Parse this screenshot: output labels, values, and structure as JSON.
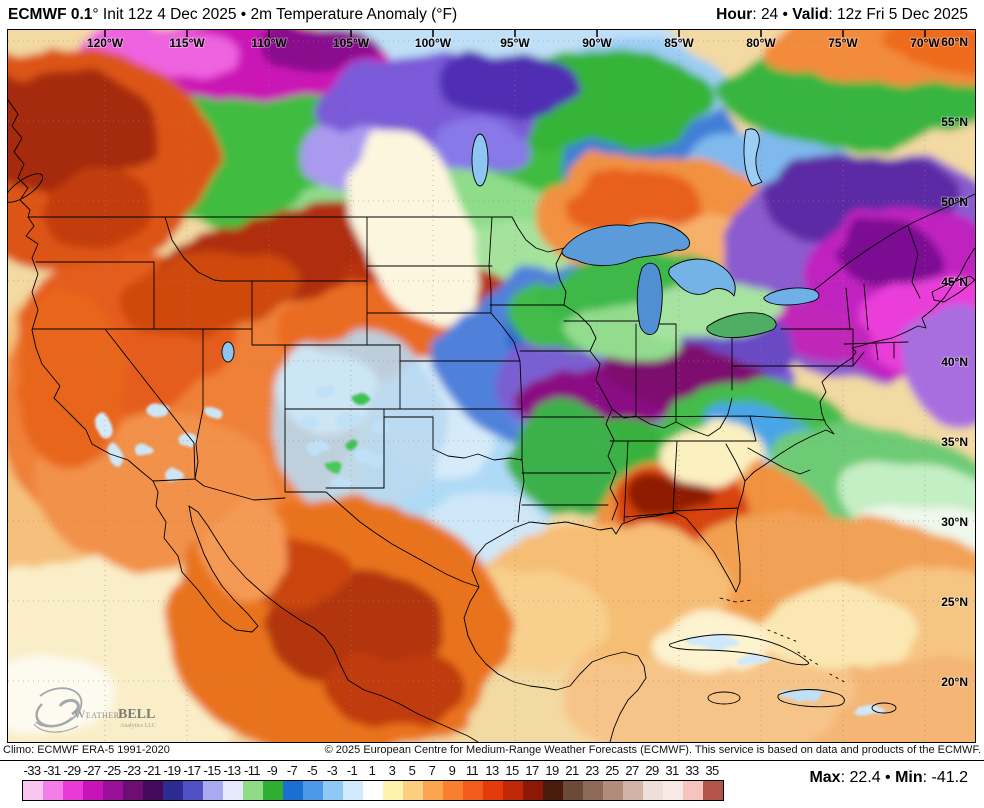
{
  "header": {
    "title_bold": "ECMWF 0.1",
    "title_rest": "° Init 12z 4 Dec 2025 • 2m Temperature Anomaly (°F)",
    "hour_bold": "Hour",
    "hour_rest": ": 24 • ",
    "valid_bold": "Valid",
    "valid_rest": ": 12z Fri 5 Dec 2025"
  },
  "map": {
    "lon_labels": [
      "120°W",
      "115°W",
      "110°W",
      "105°W",
      "100°W",
      "95°W",
      "90°W",
      "85°W",
      "80°W",
      "75°W",
      "70°W"
    ],
    "lat_labels": [
      "60°N",
      "55°N",
      "50°N",
      "45°N",
      "40°N",
      "35°N",
      "30°N",
      "25°N",
      "20°N"
    ],
    "watermark": {
      "brand_left": "Weather",
      "brand_right": "BELL",
      "sub": "Analytics LLC"
    }
  },
  "footer": {
    "climo": "Climo: ECMWF ERA-5 1991-2020",
    "copyright": "© 2025 European Centre for Medium-Range Weather Forecasts (ECMWF). This service is based on data and products of the ECMWF."
  },
  "colorbar": {
    "ticks": [
      "-33",
      "-31",
      "-29",
      "-27",
      "-25",
      "-23",
      "-21",
      "-19",
      "-17",
      "-15",
      "-13",
      "-11",
      "-9",
      "-7",
      "-5",
      "-3",
      "-1",
      "1",
      "3",
      "5",
      "7",
      "9",
      "11",
      "13",
      "15",
      "17",
      "19",
      "21",
      "23",
      "25",
      "27",
      "29",
      "31",
      "33",
      "35"
    ],
    "colors": [
      "#f9c5f1",
      "#f37ee7",
      "#e93ad8",
      "#c614b8",
      "#9a109a",
      "#6e0d74",
      "#45095c",
      "#2d2b90",
      "#5151c6",
      "#a9a9f1",
      "#e6e9fb",
      "#8edd86",
      "#2fae33",
      "#1b6fd3",
      "#4a9ae7",
      "#8ec8f3",
      "#cfeafb",
      "#ffffff",
      "#fdf3ac",
      "#fccf80",
      "#fba450",
      "#f97e30",
      "#f45a1c",
      "#e33b0c",
      "#bf2806",
      "#8e1805",
      "#4a1a0a",
      "#6b4a3a",
      "#8d6957",
      "#b08c7c",
      "#d4b3a7",
      "#efdfda",
      "#f9e9e6",
      "#f6c3bf",
      "#b2544a"
    ],
    "max_bold": "Max",
    "max_rest": ": 22.4 • ",
    "min_bold": "Min",
    "min_rest": ": -41.2"
  }
}
